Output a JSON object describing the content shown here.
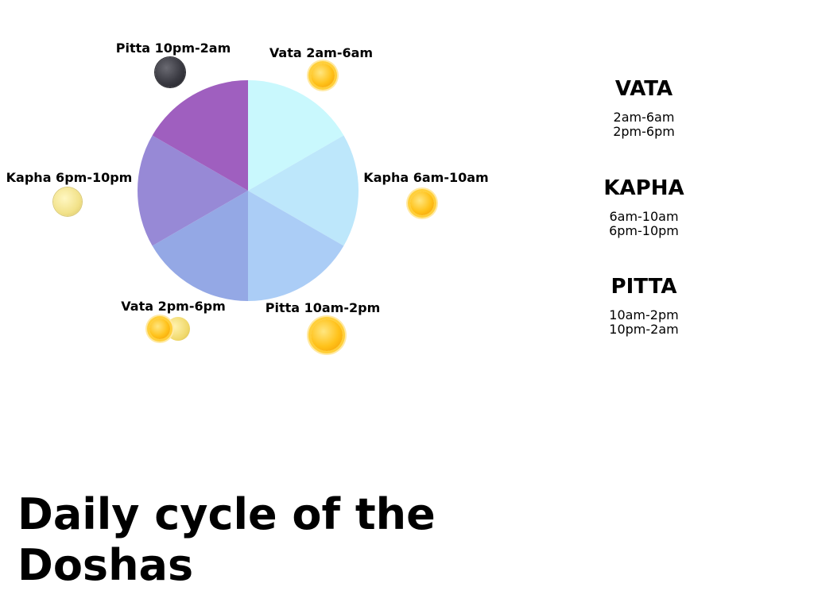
{
  "title": "Daily cycle of the Doshas",
  "wheel": {
    "segments": [
      {
        "label": "Vata 2am-6am",
        "color": "#c9f8fd",
        "icon": "sun-icon"
      },
      {
        "label": "Kapha 6am-10am",
        "color": "#bde7fb",
        "icon": "sun-icon"
      },
      {
        "label": "Pitta 10am-2pm",
        "color": "#abcdf6",
        "icon": "sun-icon"
      },
      {
        "label": "Vata 2pm-6pm",
        "color": "#94a8e5",
        "icon": "sun-and-crescent-moon-icon"
      },
      {
        "label": "Kapha 6pm-10pm",
        "color": "#9789d6",
        "icon": "full-moon-icon"
      },
      {
        "label": "Pitta 10pm-2am",
        "color": "#9f5fbf",
        "icon": "dark-moon-icon"
      }
    ]
  },
  "legend": [
    {
      "title": "VATA",
      "times": [
        "2am-6am",
        "2pm-6pm"
      ]
    },
    {
      "title": "KAPHA",
      "times": [
        "6am-10am",
        "6pm-10pm"
      ]
    },
    {
      "title": "PITTA",
      "times": [
        "10am-2pm",
        "10pm-2am"
      ]
    }
  ]
}
